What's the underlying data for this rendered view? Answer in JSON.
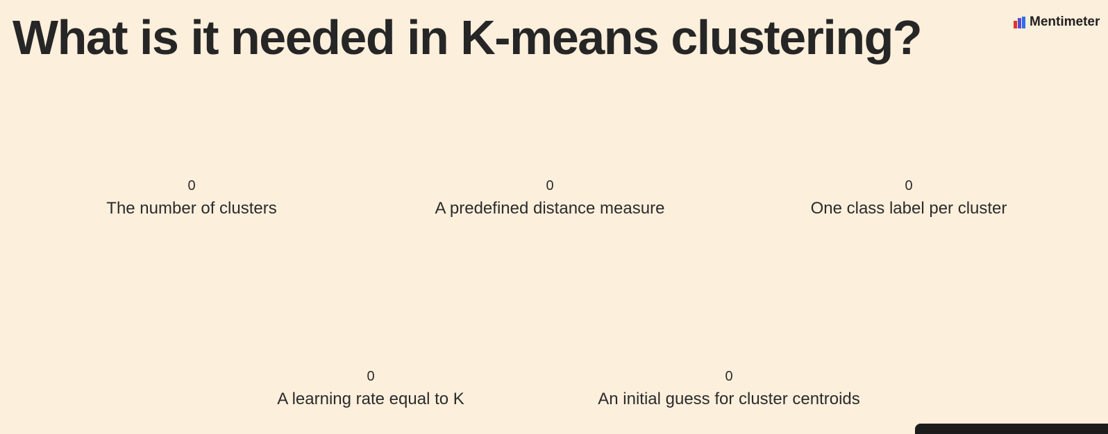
{
  "slide": {
    "title": "What is it needed in K-means clustering?"
  },
  "brand": {
    "name": "Mentimeter",
    "logo_icon": "mentimeter-logo-icon",
    "colors": [
      "#e0342c",
      "#5b4bd4",
      "#2f6fe8"
    ]
  },
  "options": [
    {
      "count": "0",
      "label": "The number of clusters"
    },
    {
      "count": "0",
      "label": "A predefined distance measure"
    },
    {
      "count": "0",
      "label": "One class label per cluster"
    },
    {
      "count": "0",
      "label": "A learning rate equal to K"
    },
    {
      "count": "0",
      "label": "An initial guess for cluster centroids"
    }
  ],
  "theme": {
    "background": "#fcefdc",
    "text": "#262626"
  }
}
